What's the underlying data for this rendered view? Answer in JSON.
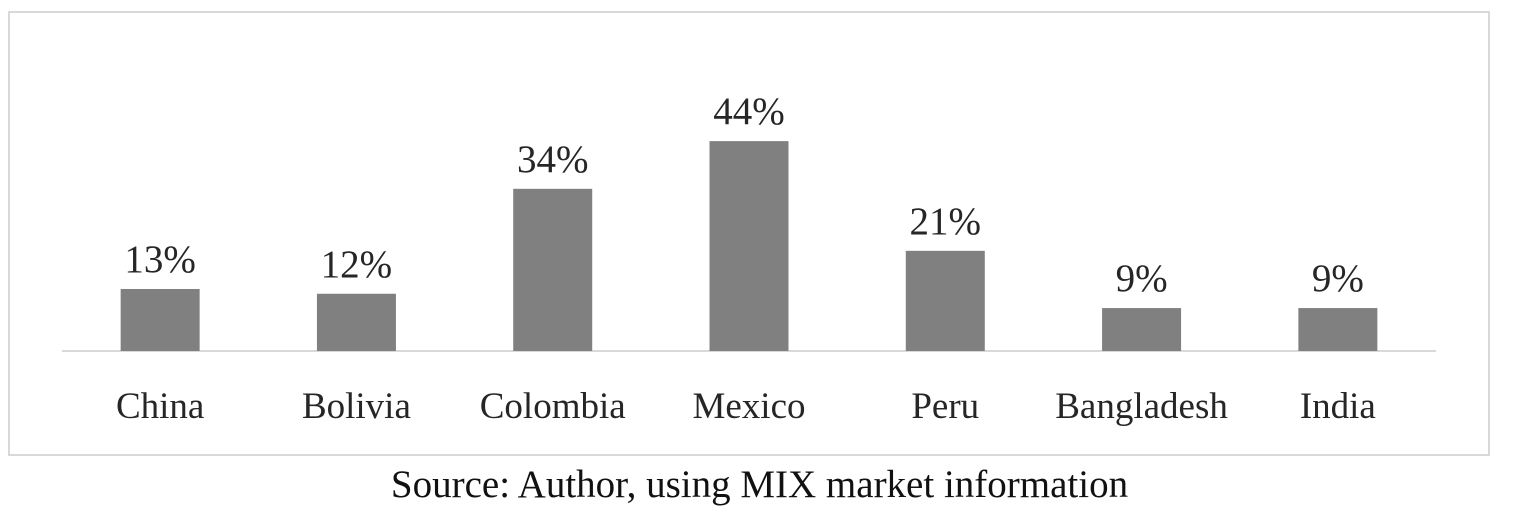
{
  "chart_data": {
    "type": "bar",
    "categories": [
      "China",
      "Bolivia",
      "Colombia",
      "Mexico",
      "Peru",
      "Bangladesh",
      "India"
    ],
    "values": [
      13,
      12,
      34,
      44,
      21,
      9,
      9
    ],
    "data_labels": [
      "13%",
      "12%",
      "34%",
      "44%",
      "21%",
      "9%",
      "9%"
    ],
    "title": "",
    "xlabel": "",
    "ylabel": "",
    "ylim": [
      0,
      60
    ],
    "grid": false,
    "legend": "none",
    "bar_color": "#808080",
    "axis_color": "#d9d9d9"
  },
  "source_caption": "Source: Author, using MIX market information"
}
